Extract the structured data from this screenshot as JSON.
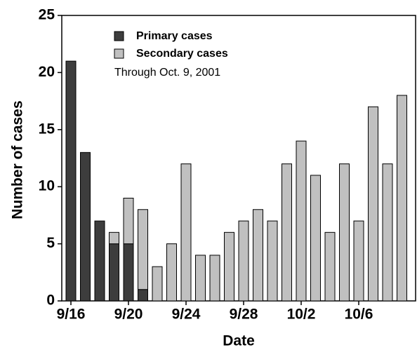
{
  "chart_data": {
    "type": "stacked-bar",
    "categories": [
      "9/16",
      null,
      null,
      null,
      "9/20",
      null,
      null,
      null,
      "9/24",
      null,
      null,
      null,
      "9/28",
      null,
      null,
      null,
      "10/2",
      null,
      null,
      null,
      "10/6",
      null,
      null,
      null
    ],
    "series": [
      {
        "name": "Primary cases",
        "color": "#3d3d3d",
        "values": [
          21,
          13,
          7,
          5,
          5,
          1,
          0,
          0,
          0,
          0,
          0,
          0,
          0,
          0,
          0,
          0,
          0,
          0,
          0,
          0,
          0,
          0,
          0,
          0
        ]
      },
      {
        "name": "Secondary cases",
        "color": "#c0c0c0",
        "values": [
          0,
          0,
          0,
          1,
          4,
          7,
          3,
          5,
          12,
          4,
          4,
          6,
          7,
          8,
          7,
          12,
          14,
          11,
          6,
          12,
          7,
          17,
          12,
          18
        ]
      }
    ],
    "annotation": "Through Oct. 9, 2001",
    "xlabel": "Date",
    "ylabel": "Number of cases",
    "ylim": [
      0,
      25
    ],
    "yticks": [
      0,
      5,
      10,
      15,
      20,
      25
    ]
  }
}
